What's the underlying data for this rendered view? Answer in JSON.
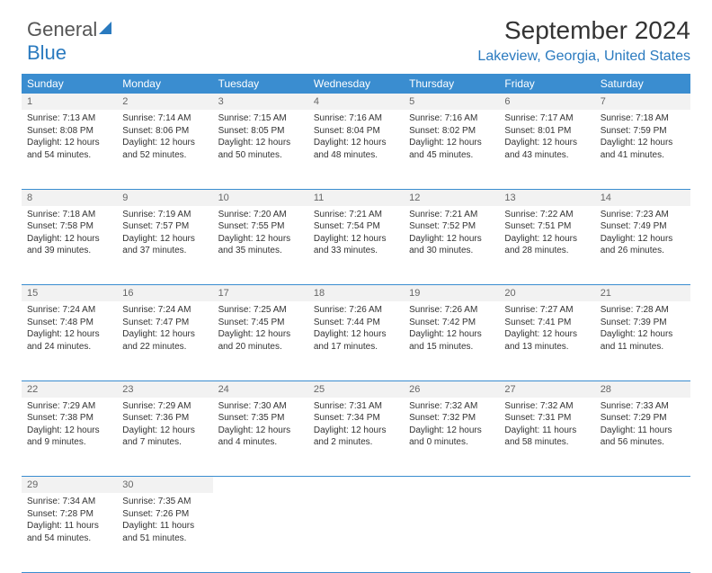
{
  "brand": {
    "part1": "General",
    "part2": "Blue"
  },
  "title": "September 2024",
  "location": "Lakeview, Georgia, United States",
  "header_bg": "#3a8dd0",
  "header_text": "#ffffff",
  "daynum_bg": "#f2f2f2",
  "accent": "#2a7abf",
  "weekdays": [
    "Sunday",
    "Monday",
    "Tuesday",
    "Wednesday",
    "Thursday",
    "Friday",
    "Saturday"
  ],
  "weeks": [
    [
      {
        "n": "1",
        "sr": "Sunrise: 7:13 AM",
        "ss": "Sunset: 8:08 PM",
        "dl": "Daylight: 12 hours and 54 minutes."
      },
      {
        "n": "2",
        "sr": "Sunrise: 7:14 AM",
        "ss": "Sunset: 8:06 PM",
        "dl": "Daylight: 12 hours and 52 minutes."
      },
      {
        "n": "3",
        "sr": "Sunrise: 7:15 AM",
        "ss": "Sunset: 8:05 PM",
        "dl": "Daylight: 12 hours and 50 minutes."
      },
      {
        "n": "4",
        "sr": "Sunrise: 7:16 AM",
        "ss": "Sunset: 8:04 PM",
        "dl": "Daylight: 12 hours and 48 minutes."
      },
      {
        "n": "5",
        "sr": "Sunrise: 7:16 AM",
        "ss": "Sunset: 8:02 PM",
        "dl": "Daylight: 12 hours and 45 minutes."
      },
      {
        "n": "6",
        "sr": "Sunrise: 7:17 AM",
        "ss": "Sunset: 8:01 PM",
        "dl": "Daylight: 12 hours and 43 minutes."
      },
      {
        "n": "7",
        "sr": "Sunrise: 7:18 AM",
        "ss": "Sunset: 7:59 PM",
        "dl": "Daylight: 12 hours and 41 minutes."
      }
    ],
    [
      {
        "n": "8",
        "sr": "Sunrise: 7:18 AM",
        "ss": "Sunset: 7:58 PM",
        "dl": "Daylight: 12 hours and 39 minutes."
      },
      {
        "n": "9",
        "sr": "Sunrise: 7:19 AM",
        "ss": "Sunset: 7:57 PM",
        "dl": "Daylight: 12 hours and 37 minutes."
      },
      {
        "n": "10",
        "sr": "Sunrise: 7:20 AM",
        "ss": "Sunset: 7:55 PM",
        "dl": "Daylight: 12 hours and 35 minutes."
      },
      {
        "n": "11",
        "sr": "Sunrise: 7:21 AM",
        "ss": "Sunset: 7:54 PM",
        "dl": "Daylight: 12 hours and 33 minutes."
      },
      {
        "n": "12",
        "sr": "Sunrise: 7:21 AM",
        "ss": "Sunset: 7:52 PM",
        "dl": "Daylight: 12 hours and 30 minutes."
      },
      {
        "n": "13",
        "sr": "Sunrise: 7:22 AM",
        "ss": "Sunset: 7:51 PM",
        "dl": "Daylight: 12 hours and 28 minutes."
      },
      {
        "n": "14",
        "sr": "Sunrise: 7:23 AM",
        "ss": "Sunset: 7:49 PM",
        "dl": "Daylight: 12 hours and 26 minutes."
      }
    ],
    [
      {
        "n": "15",
        "sr": "Sunrise: 7:24 AM",
        "ss": "Sunset: 7:48 PM",
        "dl": "Daylight: 12 hours and 24 minutes."
      },
      {
        "n": "16",
        "sr": "Sunrise: 7:24 AM",
        "ss": "Sunset: 7:47 PM",
        "dl": "Daylight: 12 hours and 22 minutes."
      },
      {
        "n": "17",
        "sr": "Sunrise: 7:25 AM",
        "ss": "Sunset: 7:45 PM",
        "dl": "Daylight: 12 hours and 20 minutes."
      },
      {
        "n": "18",
        "sr": "Sunrise: 7:26 AM",
        "ss": "Sunset: 7:44 PM",
        "dl": "Daylight: 12 hours and 17 minutes."
      },
      {
        "n": "19",
        "sr": "Sunrise: 7:26 AM",
        "ss": "Sunset: 7:42 PM",
        "dl": "Daylight: 12 hours and 15 minutes."
      },
      {
        "n": "20",
        "sr": "Sunrise: 7:27 AM",
        "ss": "Sunset: 7:41 PM",
        "dl": "Daylight: 12 hours and 13 minutes."
      },
      {
        "n": "21",
        "sr": "Sunrise: 7:28 AM",
        "ss": "Sunset: 7:39 PM",
        "dl": "Daylight: 12 hours and 11 minutes."
      }
    ],
    [
      {
        "n": "22",
        "sr": "Sunrise: 7:29 AM",
        "ss": "Sunset: 7:38 PM",
        "dl": "Daylight: 12 hours and 9 minutes."
      },
      {
        "n": "23",
        "sr": "Sunrise: 7:29 AM",
        "ss": "Sunset: 7:36 PM",
        "dl": "Daylight: 12 hours and 7 minutes."
      },
      {
        "n": "24",
        "sr": "Sunrise: 7:30 AM",
        "ss": "Sunset: 7:35 PM",
        "dl": "Daylight: 12 hours and 4 minutes."
      },
      {
        "n": "25",
        "sr": "Sunrise: 7:31 AM",
        "ss": "Sunset: 7:34 PM",
        "dl": "Daylight: 12 hours and 2 minutes."
      },
      {
        "n": "26",
        "sr": "Sunrise: 7:32 AM",
        "ss": "Sunset: 7:32 PM",
        "dl": "Daylight: 12 hours and 0 minutes."
      },
      {
        "n": "27",
        "sr": "Sunrise: 7:32 AM",
        "ss": "Sunset: 7:31 PM",
        "dl": "Daylight: 11 hours and 58 minutes."
      },
      {
        "n": "28",
        "sr": "Sunrise: 7:33 AM",
        "ss": "Sunset: 7:29 PM",
        "dl": "Daylight: 11 hours and 56 minutes."
      }
    ],
    [
      {
        "n": "29",
        "sr": "Sunrise: 7:34 AM",
        "ss": "Sunset: 7:28 PM",
        "dl": "Daylight: 11 hours and 54 minutes."
      },
      {
        "n": "30",
        "sr": "Sunrise: 7:35 AM",
        "ss": "Sunset: 7:26 PM",
        "dl": "Daylight: 11 hours and 51 minutes."
      },
      null,
      null,
      null,
      null,
      null
    ]
  ]
}
